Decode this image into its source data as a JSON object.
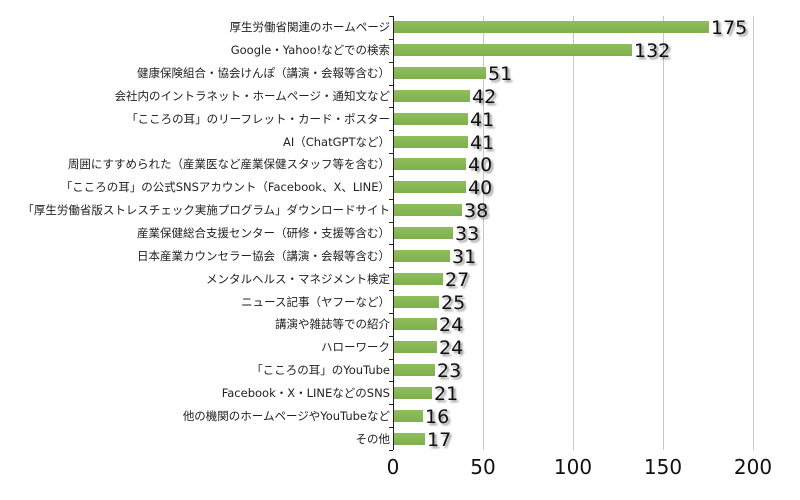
{
  "chart_data": {
    "type": "bar",
    "orientation": "horizontal",
    "title": "",
    "xlabel": "",
    "ylabel": "",
    "xlim": [
      0,
      200
    ],
    "x_ticks": [
      0,
      50,
      100,
      150,
      200
    ],
    "grid": true,
    "legend": null,
    "bar_color": "#86b656",
    "categories": [
      "厚生労働省関連のホームページ",
      "Google・Yahoo!などでの検索",
      "健康保険組合・協会けんぽ（講演・会報等含む）",
      "会社内のイントラネット・ホームページ・通知文など",
      "「こころの耳」のリーフレット・カード・ポスター",
      "AI（ChatGPTなど）",
      "周囲にすすめられた（産業医など産業保健スタッフ等を含む）",
      "「こころの耳」の公式SNSアカウント（Facebook、X、LINE）",
      "「厚生労働省版ストレスチェック実施プログラム」ダウンロードサイト",
      "産業保健総合支援センター（研修・支援等含む）",
      "日本産業カウンセラー協会（講演・会報等含む）",
      "メンタルヘルス・マネジメント検定",
      "ニュース記事（ヤフーなど）",
      "講演や雑誌等での紹介",
      "ハローワーク",
      "「こころの耳」のYouTube",
      "Facebook・X・LINEなどのSNS",
      "他の機関のホームページやYouTubeなど",
      "その他"
    ],
    "values": [
      175,
      132,
      51,
      42,
      41,
      41,
      40,
      40,
      38,
      33,
      31,
      27,
      25,
      24,
      24,
      23,
      21,
      16,
      17
    ]
  }
}
